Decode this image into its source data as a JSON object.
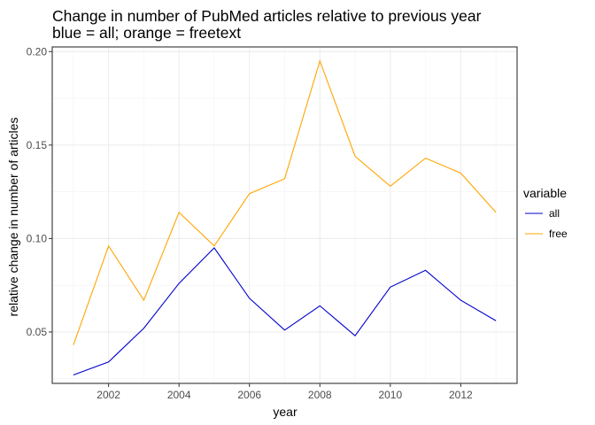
{
  "chart_data": {
    "type": "line",
    "title": "Change in number of PubMed articles relative to previous year",
    "subtitle": "blue = all; orange = freetext",
    "xlabel": "year",
    "ylabel": "relative change in number of articles",
    "x": [
      2001,
      2002,
      2003,
      2004,
      2005,
      2006,
      2007,
      2008,
      2009,
      2010,
      2011,
      2012,
      2013
    ],
    "xlim": [
      2000.4,
      2013.6
    ],
    "ylim": [
      0.0225,
      0.2025
    ],
    "x_ticks": [
      2002,
      2004,
      2006,
      2008,
      2010,
      2012
    ],
    "x_tick_labels": [
      "2002",
      "2004",
      "2006",
      "2008",
      "2010",
      "2012"
    ],
    "y_ticks": [
      0.05,
      0.1,
      0.15,
      0.2
    ],
    "y_tick_labels": [
      "0.05",
      "0.10",
      "0.15",
      "0.20"
    ],
    "grid": true,
    "legend": {
      "title": "variable",
      "position": "right"
    },
    "series": [
      {
        "name": "all",
        "color": "#0000cd",
        "values": [
          0.027,
          0.034,
          0.052,
          0.076,
          0.095,
          0.068,
          0.051,
          0.064,
          0.048,
          0.074,
          0.083,
          0.067,
          0.056
        ]
      },
      {
        "name": "free",
        "color": "#ffa500",
        "values": [
          0.043,
          0.096,
          0.067,
          0.114,
          0.096,
          0.124,
          0.132,
          0.195,
          0.144,
          0.128,
          0.143,
          0.135,
          0.114
        ]
      }
    ]
  }
}
